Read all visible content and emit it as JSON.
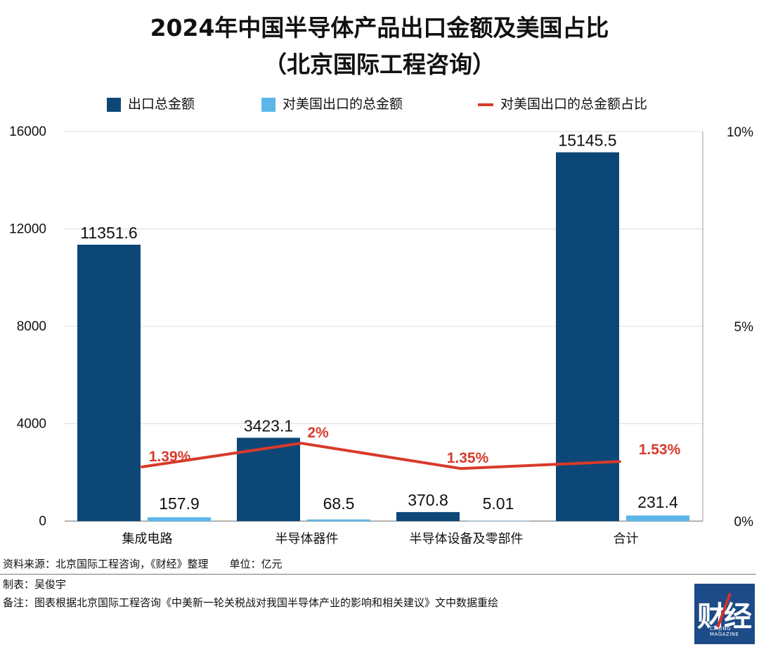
{
  "title_line1": "2024年中国半导体产品出口金额及美国占比",
  "title_line2": "（北京国际工程咨询）",
  "legend": {
    "total": "出口总金额",
    "us": "对美国出口的总金额",
    "ratio": "对美国出口的总金额占比"
  },
  "colors": {
    "total": "#0d4777",
    "us": "#5bb7ea",
    "ratio": "#d83a2a"
  },
  "chart_data": {
    "type": "bar",
    "categories": [
      "集成电路",
      "半导体器件",
      "半导体设备及零部件",
      "合计"
    ],
    "series": [
      {
        "name": "出口总金额",
        "type": "bar",
        "axis": "left",
        "values": [
          11351.6,
          3423.1,
          370.8,
          15145.5
        ],
        "labels": [
          "11351.6",
          "3423.1",
          "370.8",
          "15145.5"
        ]
      },
      {
        "name": "对美国出口的总金额",
        "type": "bar",
        "axis": "left",
        "values": [
          157.9,
          68.5,
          5.01,
          231.4
        ],
        "labels": [
          "157.9",
          "68.5",
          "5.01",
          "231.4"
        ]
      },
      {
        "name": "对美国出口的总金额占比",
        "type": "line",
        "axis": "right",
        "values": [
          1.39,
          2,
          1.35,
          1.53
        ],
        "labels": [
          "1.39%",
          "2%",
          "1.35%",
          "1.53%"
        ]
      }
    ],
    "ylim": [
      0,
      16000
    ],
    "yticks": [
      0,
      4000,
      8000,
      12000,
      16000
    ],
    "ytick_labels": [
      "0",
      "4000",
      "8000",
      "12000",
      "16000"
    ],
    "y2lim": [
      0,
      10
    ],
    "y2ticks": [
      0,
      5,
      10
    ],
    "y2tick_labels": [
      "0%",
      "5%",
      "10%"
    ],
    "grid": true,
    "legend_position": "top"
  },
  "footer": {
    "source": "资料来源：北京国际工程咨询，《财经》整理　　单位：亿元",
    "maker": "制表：吴俊宇",
    "note": "备注：图表根据北京国际工程咨询《中美新一轮关税战对我国半导体产业的影响和相关建议》文中数据重绘"
  },
  "logo": {
    "text": "财经",
    "subtext": "CAIJING MAGAZINE"
  }
}
